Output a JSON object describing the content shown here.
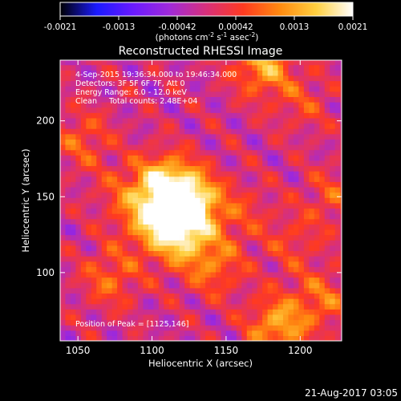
{
  "colorbar": {
    "ticks": [
      "-0.0021",
      "-0.0013",
      "-0.00042",
      "0.00042",
      "0.0013",
      "0.0021"
    ],
    "unit_prefix": "(photons cm",
    "unit_exp1": "-2",
    "unit_mid1": " s",
    "unit_exp2": "-1",
    "unit_mid2": " asec",
    "unit_exp3": "-2",
    "unit_suffix": ")",
    "colormap": [
      "#000000",
      "#1a1aff",
      "#6a1aff",
      "#a02ad8",
      "#d8307a",
      "#ff3a20",
      "#ff8a10",
      "#ffd040",
      "#ffffff"
    ]
  },
  "image": {
    "title": "Reconstructed RHESSI Image",
    "info_lines": [
      "4-Sep-2015 19:36:34.000 to 19:46:34.000",
      "Detectors: 3F 5F 6F 7F, Att 0",
      "Energy Range: 6.0 - 12.0 keV",
      "Clean     Total counts: 2.48E+04"
    ],
    "peak_label": "Position of Peak = [1125,146]"
  },
  "chart_data": {
    "type": "heatmap",
    "title": "Reconstructed RHESSI Image",
    "xlabel": "Heliocentric X (arcsec)",
    "ylabel": "Heliocentric Y (arcsec)",
    "xlim": [
      1038,
      1228
    ],
    "ylim": [
      55,
      240
    ],
    "x_ticks": [
      1050,
      1100,
      1150,
      1200
    ],
    "y_ticks": [
      100,
      150,
      200
    ],
    "x_tick_labels": [
      "1050",
      "1100",
      "1150",
      "1200"
    ],
    "y_tick_labels": [
      "100",
      "150",
      "200"
    ],
    "value_range": [
      -0.0021,
      0.0021
    ],
    "peak": [
      1125,
      146
    ],
    "sources": [
      {
        "x": 1125,
        "y": 146,
        "value": 0.0021
      },
      {
        "x": 1108,
        "y": 158,
        "value": 0.0016
      },
      {
        "x": 1118,
        "y": 125,
        "value": 0.0014
      },
      {
        "x": 1100,
        "y": 135,
        "value": 0.0011
      },
      {
        "x": 1142,
        "y": 105,
        "value": 0.0009
      },
      {
        "x": 1185,
        "y": 65,
        "value": 0.0013
      },
      {
        "x": 1215,
        "y": 82,
        "value": 0.0008
      },
      {
        "x": 1175,
        "y": 237,
        "value": 0.0013
      },
      {
        "x": 1072,
        "y": 97,
        "value": 0.0008
      },
      {
        "x": 1053,
        "y": 188,
        "value": 0.0007
      },
      {
        "x": 1080,
        "y": 152,
        "value": 0.0005
      },
      {
        "x": 1202,
        "y": 212,
        "value": 0.0005
      },
      {
        "x": 1222,
        "y": 150,
        "value": 0.0006
      },
      {
        "x": 1195,
        "y": 120,
        "value": 0.0005
      },
      {
        "x": 1160,
        "y": 140,
        "value": 0.0005
      }
    ]
  },
  "footer": {
    "timestamp": "21-Aug-2017 03:05"
  }
}
